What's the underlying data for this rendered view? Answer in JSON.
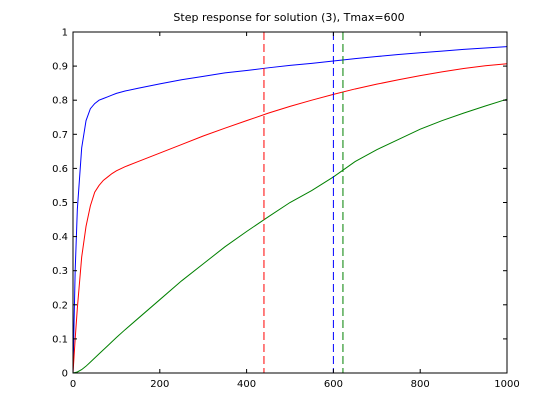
{
  "chart_data": {
    "type": "line",
    "title": "Step response for solution (3), Tmax=600",
    "xlabel": "",
    "ylabel": "",
    "xlim": [
      0,
      1000
    ],
    "ylim": [
      0,
      1
    ],
    "grid": false,
    "legend": "none",
    "xticks": [
      0,
      200,
      400,
      600,
      800,
      1000
    ],
    "yticks": [
      0,
      0.1,
      0.2,
      0.3,
      0.4,
      0.5,
      0.6,
      0.7,
      0.8,
      0.9,
      1
    ],
    "series": [
      {
        "color": "#0000ff",
        "x": [
          0,
          5,
          10,
          20,
          30,
          40,
          50,
          60,
          70,
          80,
          90,
          100,
          120,
          150,
          200,
          250,
          300,
          350,
          400,
          450,
          500,
          550,
          600,
          650,
          700,
          750,
          800,
          850,
          900,
          950,
          1000
        ],
        "y": [
          0,
          0.3,
          0.48,
          0.66,
          0.74,
          0.775,
          0.79,
          0.8,
          0.805,
          0.81,
          0.815,
          0.82,
          0.827,
          0.835,
          0.848,
          0.86,
          0.87,
          0.88,
          0.887,
          0.895,
          0.902,
          0.908,
          0.915,
          0.922,
          0.928,
          0.934,
          0.939,
          0.944,
          0.949,
          0.953,
          0.957
        ]
      },
      {
        "color": "#ff0000",
        "x": [
          0,
          5,
          10,
          20,
          30,
          40,
          50,
          60,
          70,
          80,
          90,
          100,
          120,
          150,
          200,
          250,
          300,
          350,
          400,
          450,
          500,
          550,
          600,
          650,
          700,
          750,
          800,
          850,
          900,
          950,
          1000
        ],
        "y": [
          0,
          0.1,
          0.19,
          0.34,
          0.43,
          0.49,
          0.53,
          0.55,
          0.565,
          0.575,
          0.585,
          0.593,
          0.605,
          0.62,
          0.645,
          0.67,
          0.695,
          0.718,
          0.74,
          0.762,
          0.782,
          0.8,
          0.817,
          0.833,
          0.847,
          0.86,
          0.872,
          0.883,
          0.893,
          0.901,
          0.907
        ]
      },
      {
        "color": "#008000",
        "x": [
          0,
          10,
          20,
          30,
          40,
          50,
          60,
          80,
          100,
          120,
          150,
          200,
          250,
          300,
          350,
          400,
          450,
          500,
          550,
          600,
          650,
          700,
          750,
          800,
          850,
          900,
          950,
          1000
        ],
        "y": [
          0,
          0.003,
          0.01,
          0.02,
          0.032,
          0.044,
          0.056,
          0.08,
          0.104,
          0.127,
          0.16,
          0.215,
          0.27,
          0.32,
          0.37,
          0.415,
          0.458,
          0.5,
          0.535,
          0.575,
          0.62,
          0.655,
          0.685,
          0.715,
          0.74,
          0.762,
          0.783,
          0.803
        ]
      }
    ],
    "vlines": [
      {
        "x": 440,
        "color": "#ff0000"
      },
      {
        "x": 600,
        "color": "#0000ff"
      },
      {
        "x": 622,
        "color": "#008000"
      }
    ]
  }
}
